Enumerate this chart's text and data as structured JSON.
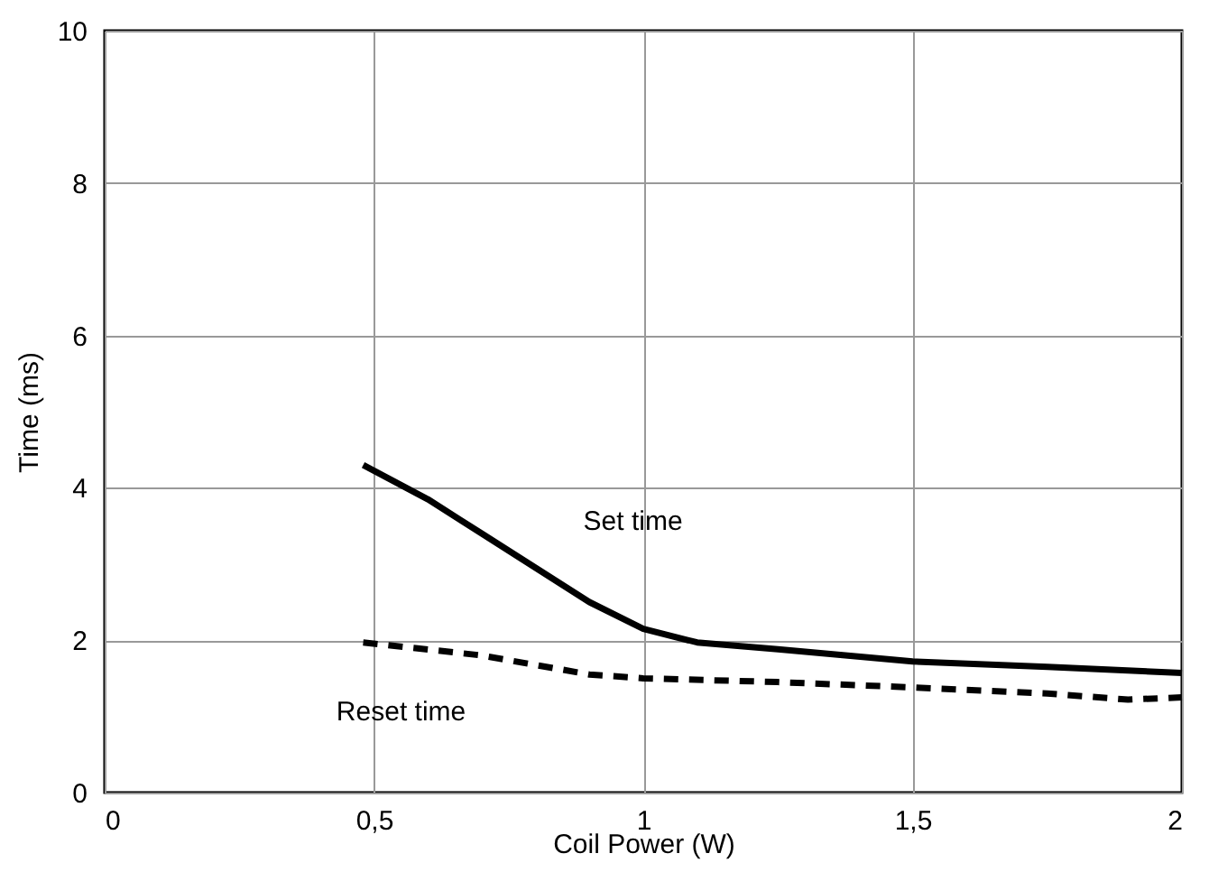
{
  "chart_data": {
    "type": "line",
    "xlabel": "Coil Power (W)",
    "ylabel": "Time (ms)",
    "xlim": [
      0,
      2
    ],
    "xticks": [
      0,
      {
        "value": 0.5,
        "label": "0,5"
      },
      1,
      {
        "value": 1.5,
        "label": "1,5"
      },
      2
    ],
    "ylim": [
      0,
      10
    ],
    "yticks": [
      0,
      2,
      4,
      6,
      8,
      10
    ],
    "grid": true,
    "marker": "none",
    "series": [
      {
        "name": "Set time",
        "color": "#000000",
        "line_style": "solid",
        "x": [
          0.48,
          0.6,
          0.7,
          0.8,
          0.9,
          1.0,
          1.1,
          1.25,
          1.5,
          1.75,
          2.0
        ],
        "values": [
          4.3,
          3.85,
          3.4,
          2.95,
          2.5,
          2.15,
          1.97,
          1.88,
          1.72,
          1.65,
          1.57
        ]
      },
      {
        "name": "Reset time",
        "color": "#000000",
        "line_style": "dashed",
        "x": [
          0.48,
          0.7,
          0.9,
          1.0,
          1.25,
          1.5,
          1.75,
          1.9,
          2.0
        ],
        "values": [
          1.97,
          1.8,
          1.55,
          1.5,
          1.45,
          1.38,
          1.3,
          1.22,
          1.25
        ]
      }
    ]
  }
}
